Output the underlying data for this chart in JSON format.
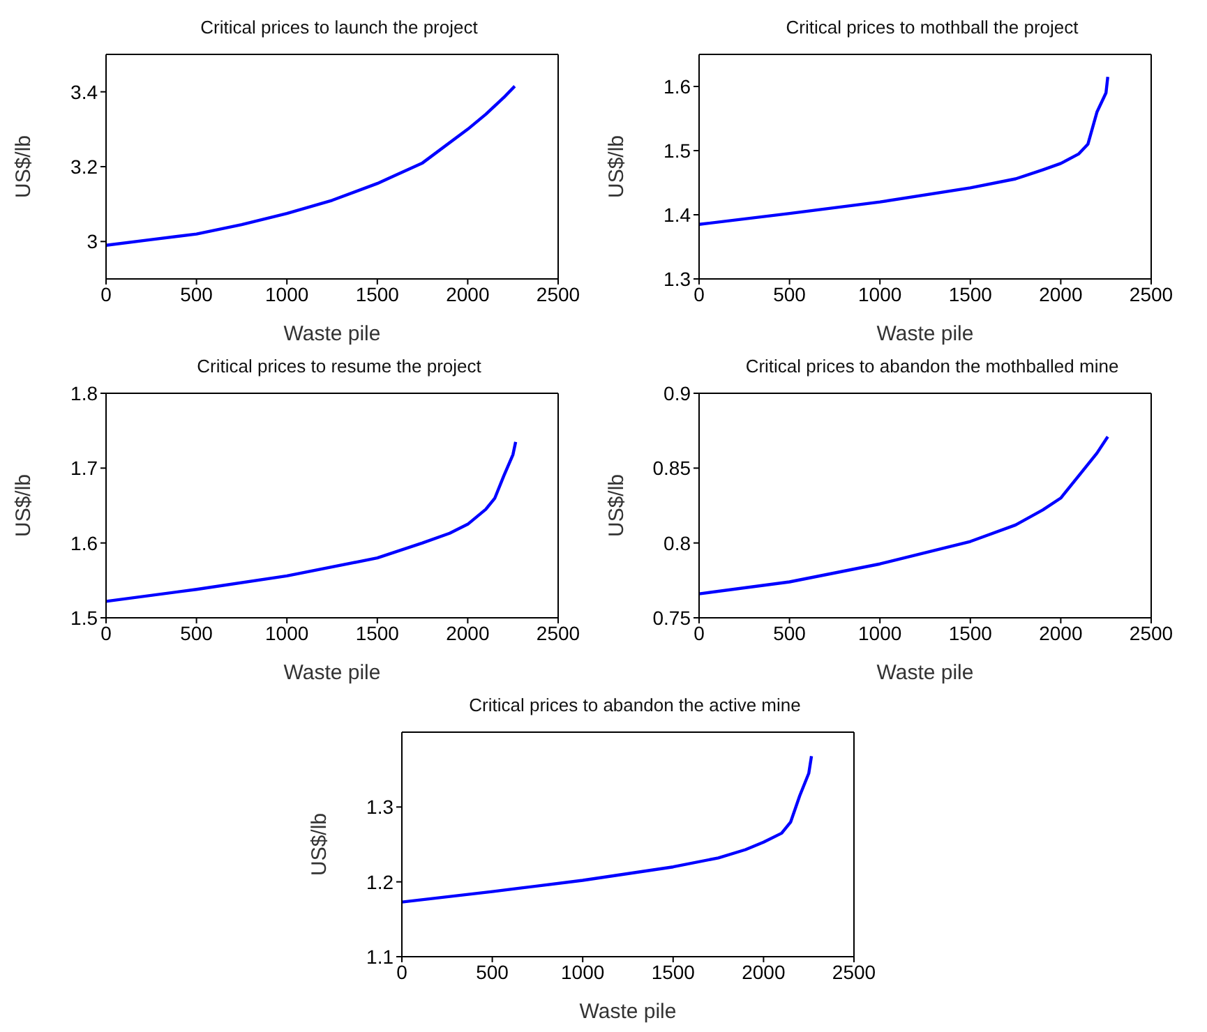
{
  "chart_data": [
    {
      "type": "line",
      "title": "Critical prices to launch the project",
      "xlabel": "Waste pile",
      "ylabel": "US$/lb",
      "xlim": [
        0,
        2500
      ],
      "xticks": [
        0,
        500,
        1000,
        1500,
        2000,
        2500
      ],
      "ylim": [
        2.9,
        3.5
      ],
      "yticks": [
        3,
        3.2,
        3.4
      ],
      "grid": false,
      "legend": false,
      "marker": "none",
      "line_style": "solid",
      "x": [
        0,
        250,
        500,
        750,
        1000,
        1250,
        1500,
        1750,
        2000,
        2100,
        2200,
        2260
      ],
      "series": [
        {
          "color": "#0000ff",
          "values": [
            2.99,
            3.005,
            3.02,
            3.045,
            3.075,
            3.11,
            3.155,
            3.21,
            3.3,
            3.34,
            3.385,
            3.415
          ]
        }
      ]
    },
    {
      "type": "line",
      "title": "Critical prices to mothball the project",
      "xlabel": "Waste pile",
      "ylabel": "US$/lb",
      "xlim": [
        0,
        2500
      ],
      "xticks": [
        0,
        500,
        1000,
        1500,
        2000,
        2500
      ],
      "ylim": [
        1.3,
        1.65
      ],
      "yticks": [
        1.3,
        1.4,
        1.5,
        1.6
      ],
      "grid": false,
      "legend": false,
      "marker": "none",
      "line_style": "solid",
      "x": [
        0,
        500,
        1000,
        1500,
        1750,
        1900,
        2000,
        2100,
        2150,
        2200,
        2250,
        2260
      ],
      "series": [
        {
          "color": "#0000ff",
          "values": [
            1.385,
            1.402,
            1.42,
            1.442,
            1.456,
            1.47,
            1.48,
            1.495,
            1.51,
            1.56,
            1.59,
            1.615
          ]
        }
      ]
    },
    {
      "type": "line",
      "title": "Critical prices to resume the project",
      "xlabel": "Waste pile",
      "ylabel": "US$/lb",
      "xlim": [
        0,
        2500
      ],
      "xticks": [
        0,
        500,
        1000,
        1500,
        2000,
        2500
      ],
      "ylim": [
        1.5,
        1.8
      ],
      "yticks": [
        1.5,
        1.6,
        1.7,
        1.8
      ],
      "grid": false,
      "legend": false,
      "marker": "none",
      "line_style": "solid",
      "x": [
        0,
        500,
        1000,
        1500,
        1750,
        1900,
        2000,
        2100,
        2150,
        2200,
        2250,
        2265
      ],
      "series": [
        {
          "color": "#0000ff",
          "values": [
            1.522,
            1.538,
            1.556,
            1.58,
            1.6,
            1.613,
            1.625,
            1.645,
            1.66,
            1.69,
            1.718,
            1.735
          ]
        }
      ]
    },
    {
      "type": "line",
      "title": "Critical prices to abandon the mothballed mine",
      "xlabel": "Waste pile",
      "ylabel": "US$/lb",
      "xlim": [
        0,
        2500
      ],
      "xticks": [
        0,
        500,
        1000,
        1500,
        2000,
        2500
      ],
      "ylim": [
        0.75,
        0.9
      ],
      "yticks": [
        0.75,
        0.8,
        0.85,
        0.9
      ],
      "grid": false,
      "legend": false,
      "marker": "none",
      "line_style": "solid",
      "x": [
        0,
        500,
        1000,
        1500,
        1750,
        1900,
        2000,
        2100,
        2200,
        2260
      ],
      "series": [
        {
          "color": "#0000ff",
          "values": [
            0.766,
            0.774,
            0.786,
            0.801,
            0.812,
            0.822,
            0.83,
            0.845,
            0.86,
            0.871
          ]
        }
      ]
    },
    {
      "type": "line",
      "title": "Critical prices to abandon the active mine",
      "xlabel": "Waste pile",
      "ylabel": "US$/lb",
      "xlim": [
        0,
        2500
      ],
      "xticks": [
        0,
        500,
        1000,
        1500,
        2000,
        2500
      ],
      "ylim": [
        1.1,
        1.4
      ],
      "yticks": [
        1.1,
        1.2,
        1.3
      ],
      "grid": false,
      "legend": false,
      "marker": "none",
      "line_style": "solid",
      "x": [
        0,
        500,
        1000,
        1500,
        1750,
        1900,
        2000,
        2100,
        2150,
        2200,
        2250,
        2265
      ],
      "series": [
        {
          "color": "#0000ff",
          "values": [
            1.173,
            1.187,
            1.202,
            1.22,
            1.232,
            1.243,
            1.253,
            1.265,
            1.28,
            1.315,
            1.345,
            1.368
          ]
        }
      ]
    }
  ]
}
